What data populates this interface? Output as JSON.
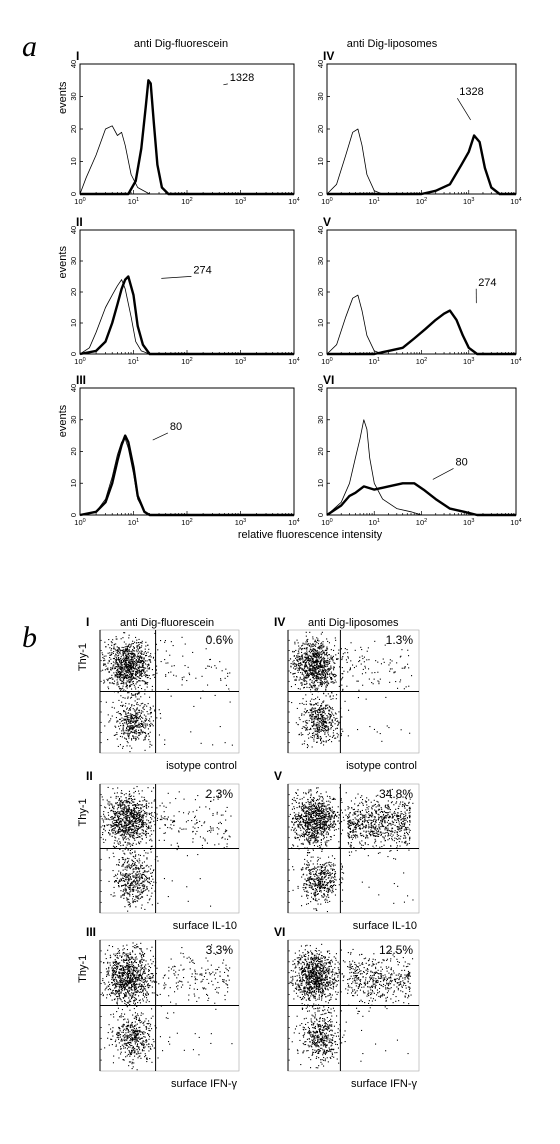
{
  "chart_data": [
    {
      "type": "line",
      "panel": "a",
      "x_scale": "log",
      "xlim": [
        1,
        10000
      ],
      "ylim": [
        0,
        40
      ],
      "ylabel": "events",
      "xlabel": "relative fluorescence intensity",
      "x_tick_labels": [
        {
          "base": "10",
          "exp": "0"
        },
        {
          "base": "10",
          "exp": "1"
        },
        {
          "base": "10",
          "exp": "2"
        },
        {
          "base": "10",
          "exp": "3"
        },
        {
          "base": "10",
          "exp": "4"
        }
      ],
      "y_ticks": [
        0,
        10,
        20,
        30,
        40
      ],
      "column_titles": [
        "anti Dig-fluorescein",
        "anti Dig-liposomes"
      ],
      "plots": [
        {
          "roman": "I",
          "annotation": "1328",
          "series": [
            {
              "style": "thin",
              "curve": [
                [
                  1,
                  0
                ],
                [
                  1.3,
                  5
                ],
                [
                  2,
                  12
                ],
                [
                  3,
                  20
                ],
                [
                  4,
                  21
                ],
                [
                  5,
                  18
                ],
                [
                  6,
                  19
                ],
                [
                  7,
                  15
                ],
                [
                  9,
                  6
                ],
                [
                  12,
                  2
                ],
                [
                  20,
                  0
                ],
                [
                  10000,
                  0
                ]
              ]
            },
            {
              "style": "thick",
              "curve": [
                [
                  1,
                  0
                ],
                [
                  8,
                  0
                ],
                [
                  11,
                  4
                ],
                [
                  14,
                  14
                ],
                [
                  17,
                  27
                ],
                [
                  19,
                  35
                ],
                [
                  21,
                  34
                ],
                [
                  24,
                  22
                ],
                [
                  28,
                  9
                ],
                [
                  34,
                  2
                ],
                [
                  45,
                  0
                ],
                [
                  10000,
                  0
                ]
              ]
            }
          ]
        },
        {
          "roman": "IV",
          "annotation": "1328",
          "series": [
            {
              "style": "thin",
              "curve": [
                [
                  1,
                  0
                ],
                [
                  1.6,
                  3
                ],
                [
                  2.5,
                  12
                ],
                [
                  3.5,
                  19
                ],
                [
                  4.5,
                  20
                ],
                [
                  5.5,
                  15
                ],
                [
                  7,
                  6
                ],
                [
                  10,
                  1
                ],
                [
                  15,
                  0
                ],
                [
                  10000,
                  0
                ]
              ]
            },
            {
              "style": "thick",
              "curve": [
                [
                  1,
                  0
                ],
                [
                  100,
                  0
                ],
                [
                  200,
                  1
                ],
                [
                  400,
                  3
                ],
                [
                  700,
                  9
                ],
                [
                  1000,
                  13
                ],
                [
                  1300,
                  18
                ],
                [
                  1700,
                  16
                ],
                [
                  2200,
                  8
                ],
                [
                  3000,
                  2
                ],
                [
                  4500,
                  0
                ],
                [
                  10000,
                  0
                ]
              ]
            }
          ]
        },
        {
          "roman": "II",
          "annotation": "274",
          "series": [
            {
              "style": "thin",
              "curve": [
                [
                  1,
                  0
                ],
                [
                  1.5,
                  2
                ],
                [
                  2,
                  7
                ],
                [
                  3,
                  15
                ],
                [
                  4,
                  19
                ],
                [
                  5,
                  22
                ],
                [
                  6,
                  24
                ],
                [
                  7,
                  21
                ],
                [
                  9,
                  12
                ],
                [
                  11,
                  4
                ],
                [
                  14,
                  1
                ],
                [
                  20,
                  0
                ],
                [
                  10000,
                  0
                ]
              ]
            },
            {
              "style": "thick",
              "curve": [
                [
                  1,
                  0
                ],
                [
                  2,
                  1
                ],
                [
                  3,
                  4
                ],
                [
                  4,
                  10
                ],
                [
                  5,
                  16
                ],
                [
                  6,
                  21
                ],
                [
                  7,
                  24
                ],
                [
                  8,
                  25
                ],
                [
                  10,
                  19
                ],
                [
                  12,
                  9
                ],
                [
                  15,
                  3
                ],
                [
                  20,
                  0
                ],
                [
                  10000,
                  0
                ]
              ]
            }
          ]
        },
        {
          "roman": "V",
          "annotation": "274",
          "series": [
            {
              "style": "thin",
              "curve": [
                [
                  1,
                  0
                ],
                [
                  1.6,
                  3
                ],
                [
                  2.5,
                  12
                ],
                [
                  3.5,
                  18
                ],
                [
                  4.5,
                  19
                ],
                [
                  5.5,
                  14
                ],
                [
                  7,
                  6
                ],
                [
                  10,
                  1
                ],
                [
                  15,
                  0
                ],
                [
                  10000,
                  0
                ]
              ]
            },
            {
              "style": "thick",
              "curve": [
                [
                  1,
                  0
                ],
                [
                  10,
                  0
                ],
                [
                  20,
                  1
                ],
                [
                  40,
                  2
                ],
                [
                  70,
                  5
                ],
                [
                  120,
                  8
                ],
                [
                  200,
                  11
                ],
                [
                  300,
                  13
                ],
                [
                  400,
                  14
                ],
                [
                  550,
                  11
                ],
                [
                  750,
                  6
                ],
                [
                  1000,
                  2
                ],
                [
                  1500,
                  0
                ],
                [
                  10000,
                  0
                ]
              ]
            }
          ]
        },
        {
          "roman": "III",
          "annotation": "80",
          "series": [
            {
              "style": "thin",
              "curve": [
                [
                  1,
                  0
                ],
                [
                  2,
                  1
                ],
                [
                  3,
                  5
                ],
                [
                  4,
                  12
                ],
                [
                  5,
                  19
                ],
                [
                  6,
                  23
                ],
                [
                  7,
                  24
                ],
                [
                  8,
                  21
                ],
                [
                  10,
                  13
                ],
                [
                  12,
                  5
                ],
                [
                  16,
                  1
                ],
                [
                  20,
                  0
                ],
                [
                  10000,
                  0
                ]
              ]
            },
            {
              "style": "thick",
              "curve": [
                [
                  1,
                  0
                ],
                [
                  2,
                  1
                ],
                [
                  3,
                  4
                ],
                [
                  4,
                  10
                ],
                [
                  5,
                  17
                ],
                [
                  6,
                  22
                ],
                [
                  7,
                  25
                ],
                [
                  8,
                  23
                ],
                [
                  10,
                  15
                ],
                [
                  12,
                  6
                ],
                [
                  16,
                  1
                ],
                [
                  20,
                  0
                ],
                [
                  10000,
                  0
                ]
              ]
            }
          ]
        },
        {
          "roman": "VI",
          "annotation": "80",
          "series": [
            {
              "style": "thin",
              "curve": [
                [
                  1,
                  0
                ],
                [
                  2,
                  4
                ],
                [
                  3,
                  10
                ],
                [
                  4,
                  18
                ],
                [
                  5,
                  24
                ],
                [
                  6,
                  30
                ],
                [
                  7,
                  27
                ],
                [
                  8,
                  18
                ],
                [
                  10,
                  10
                ],
                [
                  15,
                  5
                ],
                [
                  30,
                  2
                ],
                [
                  60,
                  1
                ],
                [
                  100,
                  0
                ],
                [
                  10000,
                  0
                ]
              ]
            },
            {
              "style": "thick",
              "curve": [
                [
                  1,
                  0
                ],
                [
                  2,
                  3
                ],
                [
                  3,
                  6
                ],
                [
                  4,
                  7
                ],
                [
                  6,
                  9
                ],
                [
                  10,
                  8
                ],
                [
                  20,
                  9
                ],
                [
                  40,
                  10
                ],
                [
                  70,
                  10
                ],
                [
                  110,
                  8
                ],
                [
                  200,
                  5
                ],
                [
                  400,
                  2
                ],
                [
                  800,
                  1
                ],
                [
                  1500,
                  0
                ],
                [
                  10000,
                  0
                ]
              ]
            }
          ]
        }
      ]
    },
    {
      "type": "scatter",
      "panel": "b",
      "ylabel": "Thy-1",
      "column_titles": [
        "anti Dig-fluorescein",
        "anti Dig-liposomes"
      ],
      "plots": [
        {
          "roman": "I",
          "percent": "0.6%",
          "condition": "isotype control",
          "upper_right_spread": 0.05
        },
        {
          "roman": "IV",
          "percent": "1.3%",
          "condition": "isotype control",
          "upper_right_spread": 0.1
        },
        {
          "roman": "II",
          "percent": "2.3%",
          "condition": "surface IL-10",
          "upper_right_spread": 0.15
        },
        {
          "roman": "V",
          "percent": "34.8%",
          "condition": "surface IL-10",
          "upper_right_spread": 1.0
        },
        {
          "roman": "III",
          "percent": "3.3%",
          "condition": "surface IFN-γ",
          "upper_right_spread": 0.2
        },
        {
          "roman": "VI",
          "percent": "12.5%",
          "condition": "surface IFN-γ",
          "upper_right_spread": 0.6
        }
      ]
    }
  ]
}
